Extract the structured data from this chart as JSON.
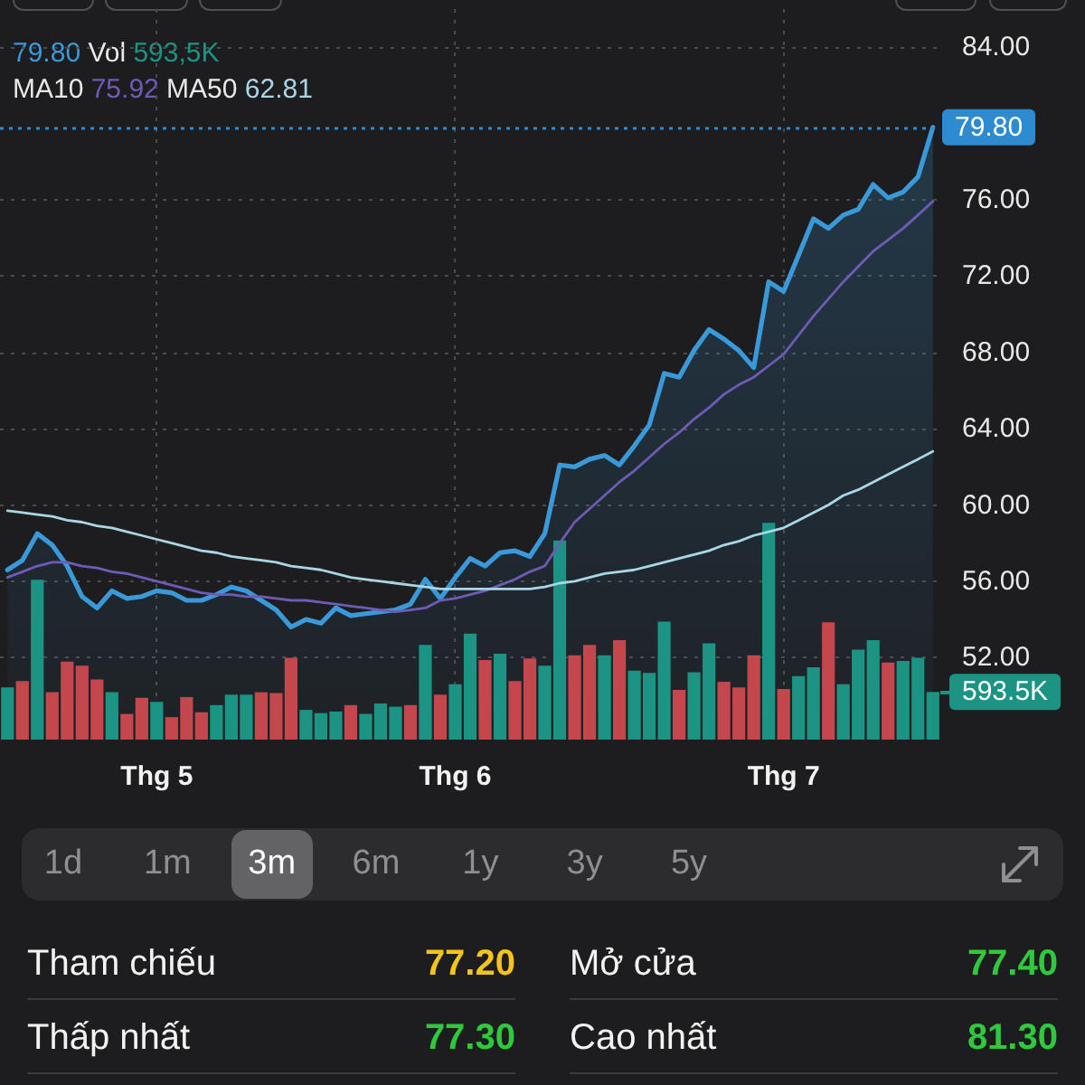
{
  "chart_data": [
    {
      "type": "area",
      "categories": [
        null,
        null,
        null,
        null,
        null,
        null,
        null,
        null,
        null,
        null,
        "Thg 5",
        null,
        null,
        null,
        null,
        null,
        null,
        null,
        null,
        null,
        null,
        null,
        null,
        null,
        null,
        null,
        null,
        null,
        null,
        null,
        "Thg 6",
        null,
        null,
        null,
        null,
        null,
        null,
        null,
        null,
        null,
        null,
        null,
        null,
        null,
        null,
        null,
        null,
        null,
        null,
        null,
        null,
        null,
        "Thg 7",
        null,
        null,
        null,
        null,
        null,
        null,
        null,
        null,
        null,
        null
      ],
      "series": [
        {
          "type": "area",
          "color": "#3a9ad9",
          "values": [
            56.6,
            57.1,
            58.5,
            57.9,
            56.8,
            55.2,
            54.6,
            55.5,
            55.1,
            55.2,
            55.5,
            55.4,
            55.0,
            55.0,
            55.3,
            55.7,
            55.5,
            55.0,
            54.5,
            53.6,
            54.0,
            53.8,
            54.6,
            54.2,
            54.3,
            54.4,
            54.5,
            54.8,
            56.1,
            55.1,
            56.2,
            57.2,
            56.8,
            57.5,
            57.6,
            57.3,
            58.5,
            62.1,
            62.0,
            62.4,
            62.6,
            62.1,
            63.1,
            64.2,
            66.9,
            66.7,
            68.1,
            69.2,
            68.7,
            68.1,
            67.2,
            71.7,
            71.2,
            73.1,
            75.0,
            74.5,
            75.2,
            75.5,
            76.8,
            76.1,
            76.4,
            77.2,
            79.8
          ]
        },
        {
          "type": "bar",
          "axis": "y2",
          "colors": [
            "#1b9484",
            "#c4474d",
            "#1b9484",
            "#c4474d",
            "#c4474d",
            "#c4474d",
            "#c4474d",
            "#1b9484",
            "#c4474d",
            "#c4474d",
            "#1b9484",
            "#c4474d",
            "#c4474d",
            "#c4474d",
            "#1b9484",
            "#1b9484",
            "#1b9484",
            "#c4474d",
            "#c4474d",
            "#c4474d",
            "#1b9484",
            "#1b9484",
            "#1b9484",
            "#c4474d",
            "#1b9484",
            "#1b9484",
            "#1b9484",
            "#c4474d",
            "#1b9484",
            "#c4474d",
            "#1b9484",
            "#1b9484",
            "#c4474d",
            "#1b9484",
            "#c4474d",
            "#c4474d",
            "#1b9484",
            "#1b9484",
            "#c4474d",
            "#c4474d",
            "#1b9484",
            "#c4474d",
            "#1b9484",
            "#1b9484",
            "#1b9484",
            "#c4474d",
            "#1b9484",
            "#1b9484",
            "#c4474d",
            "#c4474d",
            "#c4474d",
            "#1b9484",
            "#c4474d",
            "#1b9484",
            "#1b9484",
            "#c4474d",
            "#1b9484",
            "#1b9484",
            "#1b9484",
            "#c4474d",
            "#1b9484",
            "#1b9484",
            "#1b9484"
          ],
          "values": [
            650,
            730,
            1990,
            590,
            970,
            920,
            750,
            590,
            320,
            520,
            470,
            280,
            530,
            340,
            430,
            560,
            560,
            590,
            580,
            1020,
            370,
            330,
            350,
            430,
            320,
            450,
            410,
            430,
            1180,
            560,
            690,
            1320,
            990,
            1070,
            730,
            1010,
            920,
            2480,
            1050,
            1180,
            1050,
            1240,
            860,
            830,
            1470,
            620,
            840,
            1200,
            720,
            650,
            1050,
            2700,
            630,
            790,
            900,
            1460,
            690,
            1120,
            1240,
            960,
            980,
            1020,
            593.5
          ]
        },
        {
          "type": "line",
          "color": "#6f5bb5",
          "values": [
            56.2,
            56.5,
            56.8,
            57.0,
            57.0,
            56.8,
            56.7,
            56.5,
            56.4,
            56.2,
            56.0,
            55.8,
            55.6,
            55.4,
            55.3,
            55.3,
            55.2,
            55.2,
            55.1,
            55.0,
            55.0,
            54.9,
            54.8,
            54.7,
            54.6,
            54.5,
            54.4,
            54.5,
            54.6,
            55.0,
            55.1,
            55.3,
            55.5,
            55.8,
            56.1,
            56.5,
            56.8,
            58.0,
            59.1,
            59.8,
            60.5,
            61.2,
            61.8,
            62.5,
            63.2,
            63.8,
            64.5,
            65.1,
            65.8,
            66.3,
            66.7,
            67.3,
            67.9,
            68.9,
            69.9,
            70.8,
            71.7,
            72.5,
            73.3,
            73.9,
            74.5,
            75.2,
            75.92
          ]
        },
        {
          "type": "line",
          "color": "#a9d6e5",
          "values": [
            59.7,
            59.6,
            59.5,
            59.4,
            59.2,
            59.1,
            58.9,
            58.8,
            58.6,
            58.4,
            58.2,
            58.0,
            57.8,
            57.6,
            57.5,
            57.3,
            57.2,
            57.1,
            57.0,
            56.8,
            56.7,
            56.6,
            56.4,
            56.2,
            56.1,
            56.0,
            55.9,
            55.8,
            55.7,
            55.6,
            55.6,
            55.6,
            55.6,
            55.6,
            55.6,
            55.6,
            55.7,
            55.9,
            56.0,
            56.2,
            56.4,
            56.5,
            56.6,
            56.8,
            57.0,
            57.2,
            57.4,
            57.6,
            57.9,
            58.1,
            58.4,
            58.6,
            58.8,
            59.2,
            59.6,
            60.0,
            60.5,
            60.8,
            61.2,
            61.6,
            62.0,
            62.4,
            62.81
          ]
        }
      ],
      "ylim": [
        47.7,
        86
      ],
      "yticks": [
        {
          "value": 52,
          "label": "52.00"
        },
        {
          "value": 56,
          "label": "56.00"
        },
        {
          "value": 60,
          "label": "60.00"
        },
        {
          "value": 64,
          "label": "64.00"
        },
        {
          "value": 68,
          "label": "68.00"
        },
        {
          "value": 72,
          "label": "72.00"
        },
        {
          "value": 76,
          "label": "76.00"
        },
        {
          "value": 84,
          "label": "84.00"
        }
      ],
      "y2lim": [
        0,
        9100
      ],
      "y2ticks": [
        {
          "value": 593.5,
          "label": "593.5K"
        }
      ],
      "ref_lines": [
        {
          "axis": "y",
          "value": 79.8,
          "label": "79.80",
          "color": "#2f8bd0",
          "line_style": "dotted"
        }
      ],
      "annotations": [
        "79.80",
        "Vol 593,5K",
        "MA10 75.92",
        "MA50 62.81"
      ],
      "grid": true,
      "marker": "none"
    },
    {
      "type": "other",
      "annotations": [
        "1d",
        "1m",
        "3m",
        "6m",
        "1y",
        "3y",
        "5y"
      ]
    },
    {
      "type": "other",
      "annotations": [
        "Tham chiếu",
        "77.20",
        "Mở cửa",
        "77.40",
        "Thấp nhất",
        "77.30",
        "Cao nhất",
        "81.30"
      ]
    }
  ]
}
